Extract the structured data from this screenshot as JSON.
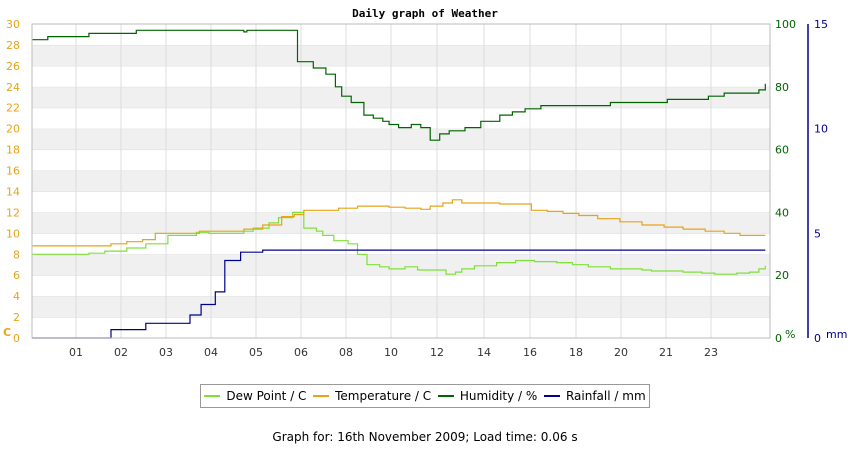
{
  "chart_data": {
    "type": "line",
    "title": "Daily graph of Weather",
    "x_ticks": [
      "01",
      "02",
      "03",
      "04",
      "05",
      "06",
      "08",
      "10",
      "12",
      "14",
      "16",
      "18",
      "20",
      "21",
      "23"
    ],
    "axes": {
      "left": {
        "unit_label": "C",
        "ticks": [
          "0",
          "2",
          "4",
          "6",
          "8",
          "10",
          "12",
          "14",
          "16",
          "18",
          "20",
          "22",
          "24",
          "26",
          "28",
          "30"
        ],
        "ylim": [
          0,
          30
        ]
      },
      "right1": {
        "unit_label": "%",
        "ticks": [
          "0",
          "20",
          "40",
          "60",
          "80",
          "100"
        ],
        "ylim": [
          0,
          100
        ]
      },
      "right2": {
        "unit_label": "mm",
        "ticks": [
          "0",
          "5",
          "10",
          "15"
        ],
        "ylim": [
          0,
          15
        ]
      }
    },
    "grid": true,
    "legend_position": "bottom-center",
    "series": [
      {
        "name": "Dew Point / C",
        "axis": "left",
        "color": "#7fe03a",
        "x": [
          0,
          1.8,
          2.3,
          3,
          3.6,
          4.3,
          5.2,
          5.6,
          6.7,
          7,
          7.5,
          7.8,
          8.25,
          8.6,
          9.0,
          9.2,
          9.55,
          10.0,
          10.3,
          10.6,
          11.0,
          11.3,
          11.8,
          12.2,
          12.5,
          13.1,
          13.4,
          13.6,
          14.0,
          14.7,
          15.3,
          15.9,
          16.6,
          17.1,
          17.6,
          18.3,
          19.3,
          19.6,
          20.6,
          21.2,
          21.6,
          22.3,
          22.7,
          23.0,
          23.2
        ],
        "y": [
          8.0,
          8.1,
          8.3,
          8.6,
          9.0,
          9.8,
          10.1,
          10.0,
          10.2,
          10.5,
          11.0,
          11.5,
          12.0,
          10.5,
          10.2,
          9.8,
          9.3,
          9.0,
          8.0,
          7.0,
          6.8,
          6.6,
          6.8,
          6.5,
          6.5,
          6.1,
          6.3,
          6.6,
          6.9,
          7.2,
          7.4,
          7.3,
          7.2,
          7.0,
          6.8,
          6.6,
          6.5,
          6.4,
          6.3,
          6.2,
          6.1,
          6.2,
          6.3,
          6.6,
          6.9
        ]
      },
      {
        "name": "Temperature / C",
        "axis": "left",
        "color": "#e8a317",
        "x": [
          0,
          1.8,
          2.5,
          3,
          3.5,
          3.9,
          5.3,
          6.7,
          7.3,
          7.9,
          8.3,
          8.6,
          9.2,
          9.7,
          10.3,
          10.9,
          11.3,
          11.8,
          12.3,
          12.6,
          13.0,
          13.3,
          13.6,
          14.1,
          14.8,
          15.3,
          15.8,
          16.3,
          16.8,
          17.3,
          17.9,
          18.6,
          19.3,
          20.0,
          20.6,
          21.3,
          21.9,
          22.4,
          23.2
        ],
        "y": [
          8.8,
          8.8,
          9.0,
          9.2,
          9.4,
          10.0,
          10.2,
          10.4,
          10.8,
          11.6,
          11.8,
          12.2,
          12.2,
          12.4,
          12.6,
          12.6,
          12.5,
          12.4,
          12.3,
          12.6,
          12.9,
          13.2,
          12.9,
          12.9,
          12.8,
          12.8,
          12.2,
          12.1,
          11.9,
          11.7,
          11.4,
          11.1,
          10.8,
          10.6,
          10.4,
          10.2,
          10.0,
          9.8,
          9.8
        ]
      },
      {
        "name": "Humidity / %",
        "axis": "right1",
        "color": "#006400",
        "x": [
          0,
          0.5,
          1.8,
          3.3,
          5.2,
          6.7,
          6.8,
          7.1,
          7.3,
          7.8,
          8.4,
          8.6,
          8.9,
          9.3,
          9.6,
          9.8,
          10.1,
          10.5,
          10.8,
          11.1,
          11.3,
          11.6,
          12.0,
          12.3,
          12.6,
          12.9,
          13.2,
          13.5,
          13.7,
          14.2,
          14.8,
          15.2,
          15.6,
          16.1,
          16.6,
          17.1,
          17.6,
          18.3,
          19.0,
          19.5,
          20.1,
          20.9,
          21.4,
          21.9,
          22.6,
          23.0,
          23.2
        ],
        "y": [
          95,
          96,
          97,
          98,
          98,
          97.5,
          98,
          98,
          98,
          98,
          88,
          88,
          86,
          84,
          80,
          77,
          75,
          71,
          70,
          69,
          68,
          67,
          68,
          67,
          63,
          65,
          66,
          66,
          67,
          69,
          71,
          72,
          73,
          74,
          74,
          74,
          74,
          75,
          75,
          75,
          76,
          76,
          77,
          78,
          78,
          79,
          81
        ]
      },
      {
        "name": "Rainfall / mm",
        "axis": "right2",
        "color": "#00008b",
        "x": [
          0,
          2.4,
          2.5,
          3.5,
          3.6,
          4.8,
          5.0,
          5.2,
          5.35,
          5.5,
          5.8,
          5.9,
          6.1,
          6.4,
          6.6,
          7.1,
          7.25,
          7.3,
          9.0,
          11.8,
          14.0,
          17.0,
          20.0,
          23.2
        ],
        "y": [
          0,
          0,
          0.4,
          0.4,
          0.7,
          0.7,
          1.1,
          1.1,
          1.6,
          1.6,
          2.2,
          2.2,
          3.7,
          3.7,
          4.1,
          4.1,
          4.1,
          4.2,
          4.2,
          4.2,
          4.2,
          4.2,
          4.2,
          4.2
        ]
      }
    ]
  },
  "footer_text": "Graph for: 16th November 2009; Load time: 0.06 s"
}
